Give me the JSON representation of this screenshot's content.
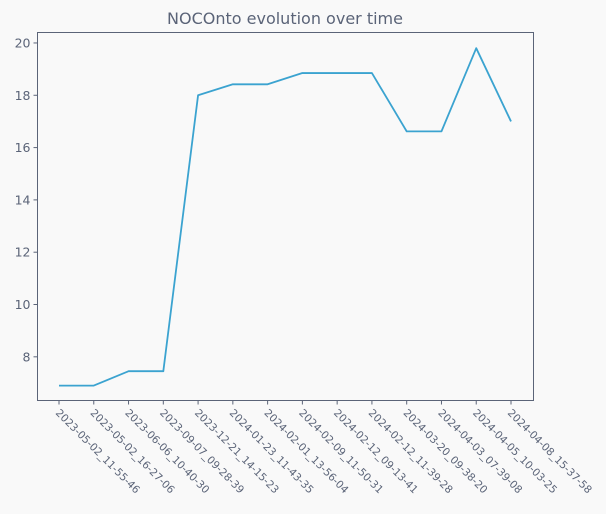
{
  "chart_data": {
    "type": "line",
    "title": "NOCOnto evolution over time",
    "xlabel": "",
    "ylabel": "",
    "categories": [
      "2023-05-02_11-55-46",
      "2023-05-02_16-27-06",
      "2023-06-06_10-40-30",
      "2023-09-07_09-28-39",
      "2023-12-21_14-15-23",
      "2024-01-23_11-43-35",
      "2024-02-01_13-56-04",
      "2024-02-09_11-50-31",
      "2024-02-12_09-13-41",
      "2024-02-12_11-39-28",
      "2024-03-20_09-38-20",
      "2024-04-03_07-39-08",
      "2024-04-05_10-03-25",
      "2024-04-08_15-37-58"
    ],
    "series": [
      {
        "color": "#3ba3d0",
        "values": [
          6.9,
          6.9,
          7.45,
          7.45,
          18.0,
          18.42,
          18.42,
          18.85,
          18.85,
          18.85,
          16.62,
          16.62,
          19.8,
          17.0
        ]
      }
    ],
    "ylim": [
      6.33,
      20.4
    ],
    "yticks": [
      8,
      10,
      12,
      14,
      16,
      18,
      20
    ],
    "grid": false,
    "legend": "none"
  }
}
